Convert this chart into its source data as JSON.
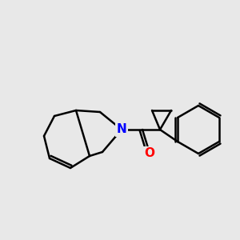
{
  "bg_color": "#e8e8e8",
  "bond_color": "#000000",
  "n_color": "#0000ff",
  "o_color": "#ff0000",
  "bond_width": 1.8,
  "font_size_atom": 11
}
